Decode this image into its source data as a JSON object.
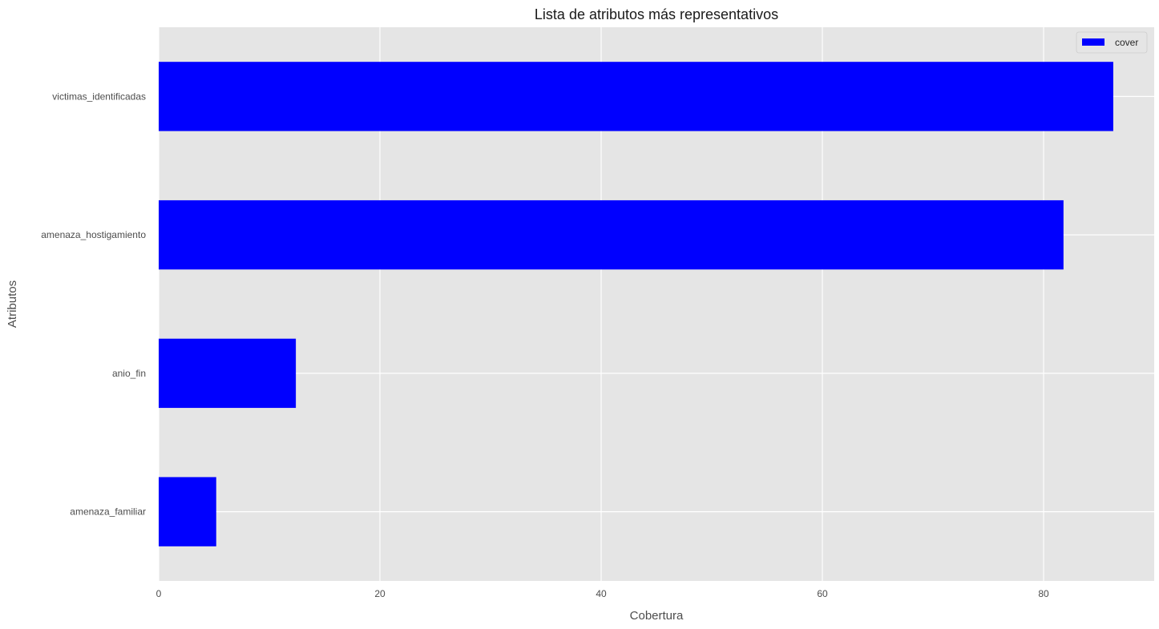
{
  "chart_data": {
    "type": "bar",
    "orientation": "horizontal",
    "title": "Lista de atributos más representativos",
    "xlabel": "Cobertura",
    "ylabel": "Atributos",
    "categories": [
      "victimas_identificadas",
      "amenaza_hostigamiento",
      "anio_fin",
      "amenaza_familiar"
    ],
    "series": [
      {
        "name": "cover",
        "values": [
          86.3,
          81.8,
          12.4,
          5.2
        ],
        "color": "#0000ff"
      }
    ],
    "xlim": [
      0,
      90
    ],
    "xticks": [
      0,
      20,
      40,
      60,
      80
    ],
    "grid": true,
    "legend_position": "top-right",
    "background_color": "#e5e5e5"
  }
}
